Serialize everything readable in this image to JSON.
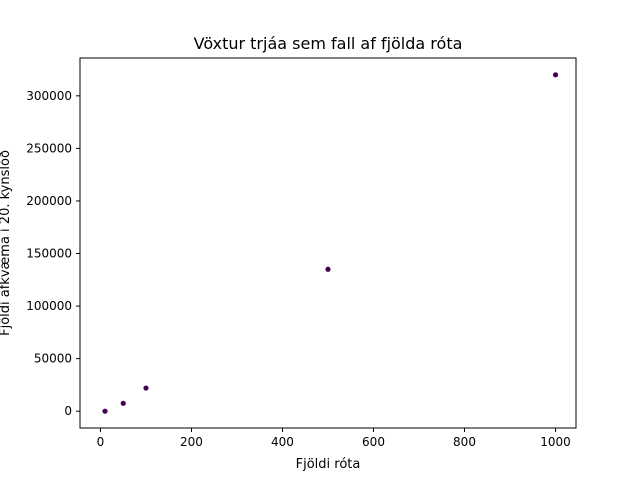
{
  "chart_data": {
    "type": "scatter",
    "title": "Vöxtur trjáa sem fall af fjölda róta",
    "xlabel": "Fjöldi róta",
    "ylabel": "Fjöldi afkvæma í 20. kynslóð",
    "xlim": [
      -45,
      1045
    ],
    "ylim": [
      -16000,
      336000
    ],
    "x_ticks": [
      0,
      200,
      400,
      600,
      800,
      1000
    ],
    "y_ticks": [
      0,
      50000,
      100000,
      150000,
      200000,
      250000,
      300000
    ],
    "x_tick_labels": [
      "0",
      "200",
      "400",
      "600",
      "800",
      "1000"
    ],
    "y_tick_labels": [
      "0",
      "50000",
      "100000",
      "150000",
      "200000",
      "250000",
      "300000"
    ],
    "grid": false,
    "marker_color": "#440154",
    "points": [
      {
        "x": 10,
        "y": 0
      },
      {
        "x": 50,
        "y": 7500
      },
      {
        "x": 100,
        "y": 22000
      },
      {
        "x": 500,
        "y": 135000
      },
      {
        "x": 1000,
        "y": 320000
      }
    ]
  }
}
